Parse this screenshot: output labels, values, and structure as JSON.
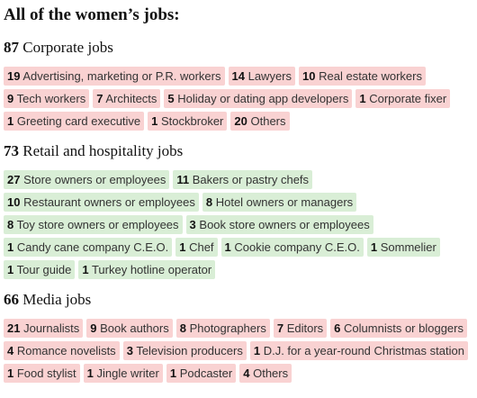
{
  "title": "All of the women’s jobs:",
  "sections": [
    {
      "count": 87,
      "label": "Corporate jobs",
      "color": "#f9d2d2",
      "rows": [
        [
          {
            "count": 19,
            "label": "Advertising, marketing or P.R. workers"
          },
          {
            "count": 14,
            "label": "Lawyers"
          },
          {
            "count": 10,
            "label": "Real estate workers"
          }
        ],
        [
          {
            "count": 9,
            "label": "Tech workers"
          },
          {
            "count": 7,
            "label": "Architects"
          },
          {
            "count": 5,
            "label": "Holiday or dating app developers"
          },
          {
            "count": 1,
            "label": "Corporate fixer"
          }
        ],
        [
          {
            "count": 1,
            "label": "Greeting card executive"
          },
          {
            "count": 1,
            "label": "Stockbroker"
          },
          {
            "count": 20,
            "label": "Others"
          }
        ]
      ]
    },
    {
      "count": 73,
      "label": "Retail and hospitality jobs",
      "color": "#d9eed6",
      "rows": [
        [
          {
            "count": 27,
            "label": "Store owners or employees"
          },
          {
            "count": 11,
            "label": "Bakers or pastry chefs"
          }
        ],
        [
          {
            "count": 10,
            "label": "Restaurant owners or employees"
          },
          {
            "count": 8,
            "label": "Hotel owners or managers"
          }
        ],
        [
          {
            "count": 8,
            "label": "Toy store owners or employees"
          },
          {
            "count": 3,
            "label": "Book store owners or employees"
          }
        ],
        [
          {
            "count": 1,
            "label": "Candy cane company C.E.O."
          },
          {
            "count": 1,
            "label": "Chef"
          },
          {
            "count": 1,
            "label": "Cookie company C.E.O."
          },
          {
            "count": 1,
            "label": "Sommelier"
          }
        ],
        [
          {
            "count": 1,
            "label": "Tour guide"
          },
          {
            "count": 1,
            "label": "Turkey hotline operator"
          }
        ]
      ]
    },
    {
      "count": 66,
      "label": "Media jobs",
      "color": "#f9d2d2",
      "rows": [
        [
          {
            "count": 21,
            "label": "Journalists"
          },
          {
            "count": 9,
            "label": "Book authors"
          },
          {
            "count": 8,
            "label": "Photographers"
          },
          {
            "count": 7,
            "label": "Editors"
          },
          {
            "count": 6,
            "label": "Columnists or bloggers"
          }
        ],
        [
          {
            "count": 4,
            "label": "Romance novelists"
          },
          {
            "count": 3,
            "label": "Television producers"
          },
          {
            "count": 1,
            "label": "D.J. for a year-round Christmas station"
          }
        ],
        [
          {
            "count": 1,
            "label": "Food stylist"
          },
          {
            "count": 1,
            "label": "Jingle writer"
          },
          {
            "count": 1,
            "label": "Podcaster"
          },
          {
            "count": 4,
            "label": "Others"
          }
        ]
      ]
    }
  ]
}
